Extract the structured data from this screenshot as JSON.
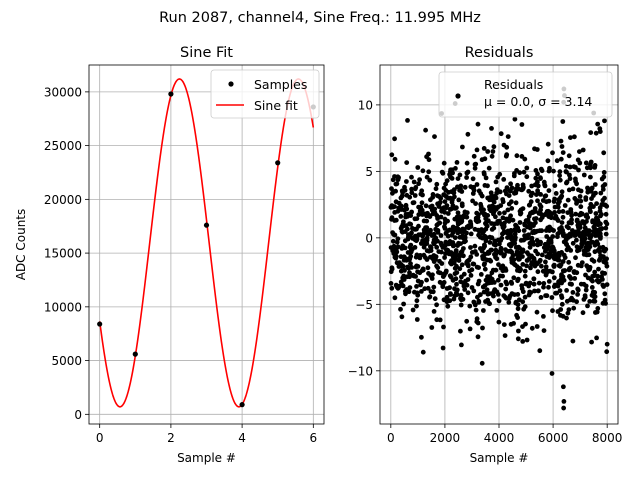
{
  "figure": {
    "suptitle": "Run 2087, channel4, Sine Freq.: 11.995 MHz"
  },
  "chart_data": [
    {
      "type": "scatter+line",
      "title": "Sine Fit",
      "xlabel": "Sample #",
      "ylabel": "ADC Counts",
      "xlim": [
        -0.3,
        6.3
      ],
      "ylim": [
        -900,
        32500
      ],
      "xticks": [
        0,
        2,
        4,
        6
      ],
      "yticks": [
        0,
        5000,
        10000,
        15000,
        20000,
        25000,
        30000
      ],
      "grid": true,
      "legend_position": "top-right",
      "series": [
        {
          "name": "Samples",
          "kind": "scatter",
          "color": "#000000",
          "x": [
            0,
            1,
            2,
            3,
            4,
            5,
            6
          ],
          "y": [
            8400,
            5600,
            29800,
            17600,
            900,
            23400,
            28600
          ]
        },
        {
          "name": "Sine fit",
          "kind": "line",
          "color": "#ff0000",
          "model": {
            "offset": 15950,
            "amplitude": 15250,
            "period_samples": 3.34,
            "phase_peak_x": 2.24,
            "x_start": 0,
            "x_end": 6
          }
        }
      ]
    },
    {
      "type": "scatter",
      "title": "Residuals",
      "xlabel": "Sample #",
      "ylabel": "",
      "xlim": [
        -400,
        8400
      ],
      "ylim": [
        -14,
        13
      ],
      "xticks": [
        0,
        2000,
        4000,
        6000,
        8000
      ],
      "yticks": [
        -10,
        -5,
        0,
        5,
        10
      ],
      "grid": true,
      "legend_position": "top-right",
      "series": [
        {
          "name": "Residuals",
          "kind": "scatter",
          "color": "#000000",
          "mu": 0.0,
          "sigma": 3.14,
          "n_points": 8000,
          "x_range": [
            0,
            8000
          ],
          "outliers": [
            {
              "x": 6390,
              "y": -12.8
            },
            {
              "x": 6400,
              "y": -12.3
            },
            {
              "x": 6380,
              "y": -11.2
            },
            {
              "x": 5960,
              "y": -10.2
            },
            {
              "x": 6400,
              "y": 11.2
            },
            {
              "x": 6420,
              "y": 10.7
            },
            {
              "x": 6390,
              "y": 10.2
            },
            {
              "x": 2380,
              "y": 10.1
            },
            {
              "x": 7900,
              "y": 8.8
            },
            {
              "x": 1200,
              "y": -8.6
            },
            {
              "x": 8000,
              "y": -8.0
            }
          ]
        }
      ],
      "legend_label": "Residuals",
      "legend_stats": "μ = 0.0, σ = 3.14"
    }
  ]
}
